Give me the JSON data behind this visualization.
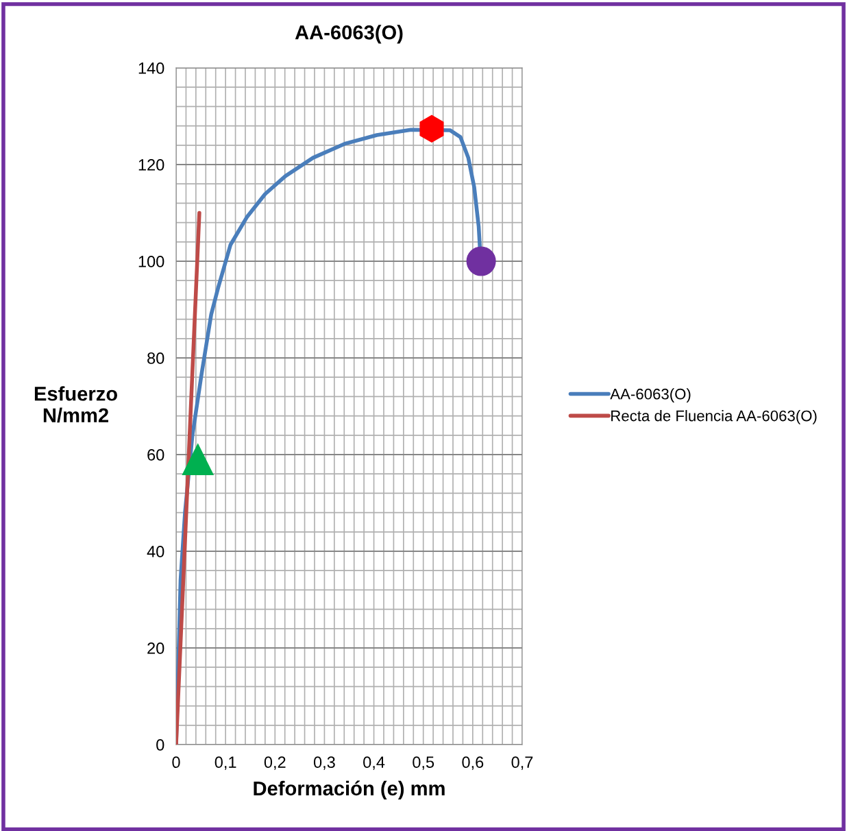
{
  "chart_data": {
    "type": "line",
    "title": "AA-6063(O)",
    "xlabel": "Deformación (e) mm",
    "ylabel": "Esfuerzo\nN/mm2",
    "xlim": [
      0,
      0.7
    ],
    "ylim": [
      0,
      140
    ],
    "xticks": [
      0,
      {
        "value": 0.1,
        "label": "0,1"
      },
      {
        "value": 0.2,
        "label": "0,2"
      },
      {
        "value": 0.3,
        "label": "0,3"
      },
      {
        "value": 0.4,
        "label": "0,4"
      },
      {
        "value": 0.5,
        "label": "0,5"
      },
      {
        "value": 0.6,
        "label": "0,6"
      },
      {
        "value": 0.7,
        "label": "0,7"
      }
    ],
    "yticks": [
      0,
      20,
      40,
      60,
      80,
      100,
      120,
      140
    ],
    "grid": true,
    "legend": "right",
    "marker": "none",
    "line_style": "solid",
    "series": [
      {
        "name": "AA-6063(O)",
        "color": "#4a7ebb",
        "x": [
          0,
          0.009,
          0.018,
          0.033,
          0.052,
          0.071,
          0.085,
          0.11,
          0.143,
          0.18,
          0.221,
          0.277,
          0.341,
          0.406,
          0.475,
          0.554,
          0.575,
          0.591,
          0.603,
          0.612,
          0.616
        ],
        "values": [
          0,
          34,
          48,
          64,
          77,
          89,
          94.5,
          103.4,
          109.1,
          113.9,
          117.6,
          121.4,
          124.3,
          126.1,
          127.2,
          127.1,
          125.7,
          121.4,
          115.3,
          107.2,
          100.1
        ]
      },
      {
        "name": "Recta de Fluencia AA-6063(O)",
        "color": "#be4b48",
        "x": [
          0,
          0.047
        ],
        "values": [
          0,
          110
        ]
      },
      {
        "type": "scatter",
        "color": "#ff0000",
        "x": [
          0.517
        ],
        "values": [
          127.4
        ]
      },
      {
        "type": "scatter",
        "marker": "circle",
        "color": "#7030a0",
        "x": [
          0.617
        ],
        "values": [
          100
        ]
      },
      {
        "type": "scatter",
        "marker": "triangle",
        "color": "#00b050",
        "x": [
          0.044
        ],
        "values": [
          59
        ]
      }
    ]
  }
}
